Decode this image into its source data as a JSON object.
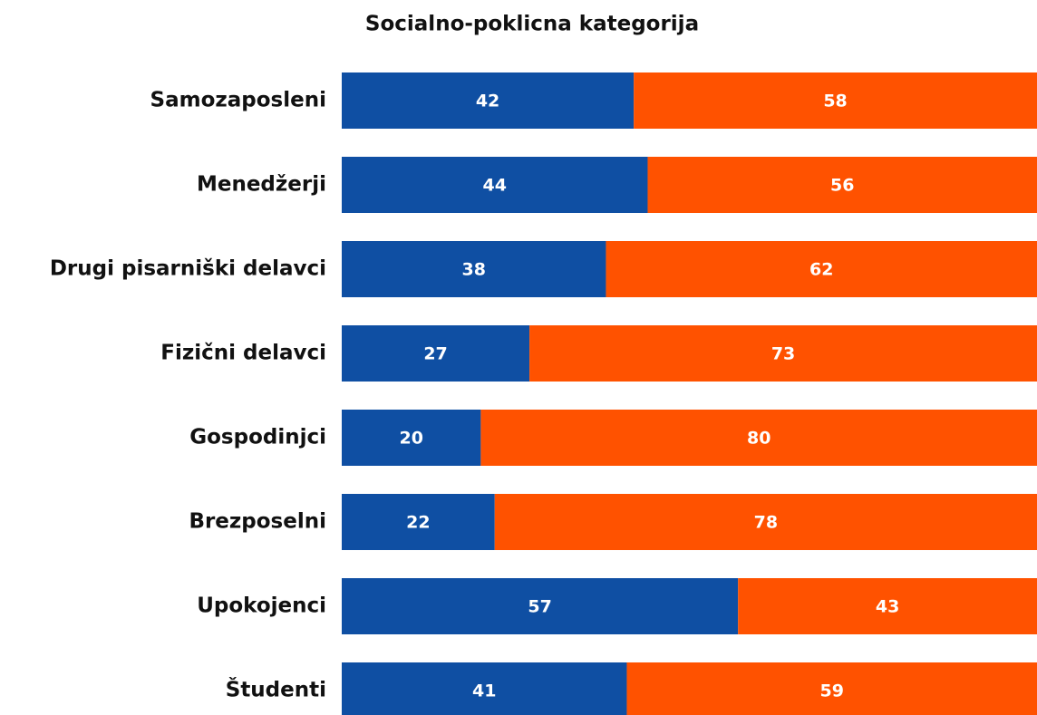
{
  "chart_data": {
    "type": "stacked-bar-horizontal",
    "title": "Socialno-poklicna kategorija",
    "categories": [
      "Samozaposleni",
      "Menedžerji",
      "Drugi pisarniški delavci",
      "Fizični delavci",
      "Gospodinjci",
      "Brezposelni",
      "Upokojenci",
      "Študenti"
    ],
    "series": [
      {
        "color": "#0f4fa3",
        "values": [
          42,
          44,
          38,
          27,
          20,
          22,
          57,
          41
        ]
      },
      {
        "color": "#ff5200",
        "values": [
          58,
          56,
          62,
          73,
          80,
          78,
          43,
          59
        ]
      }
    ],
    "xlim": [
      0,
      100
    ]
  }
}
